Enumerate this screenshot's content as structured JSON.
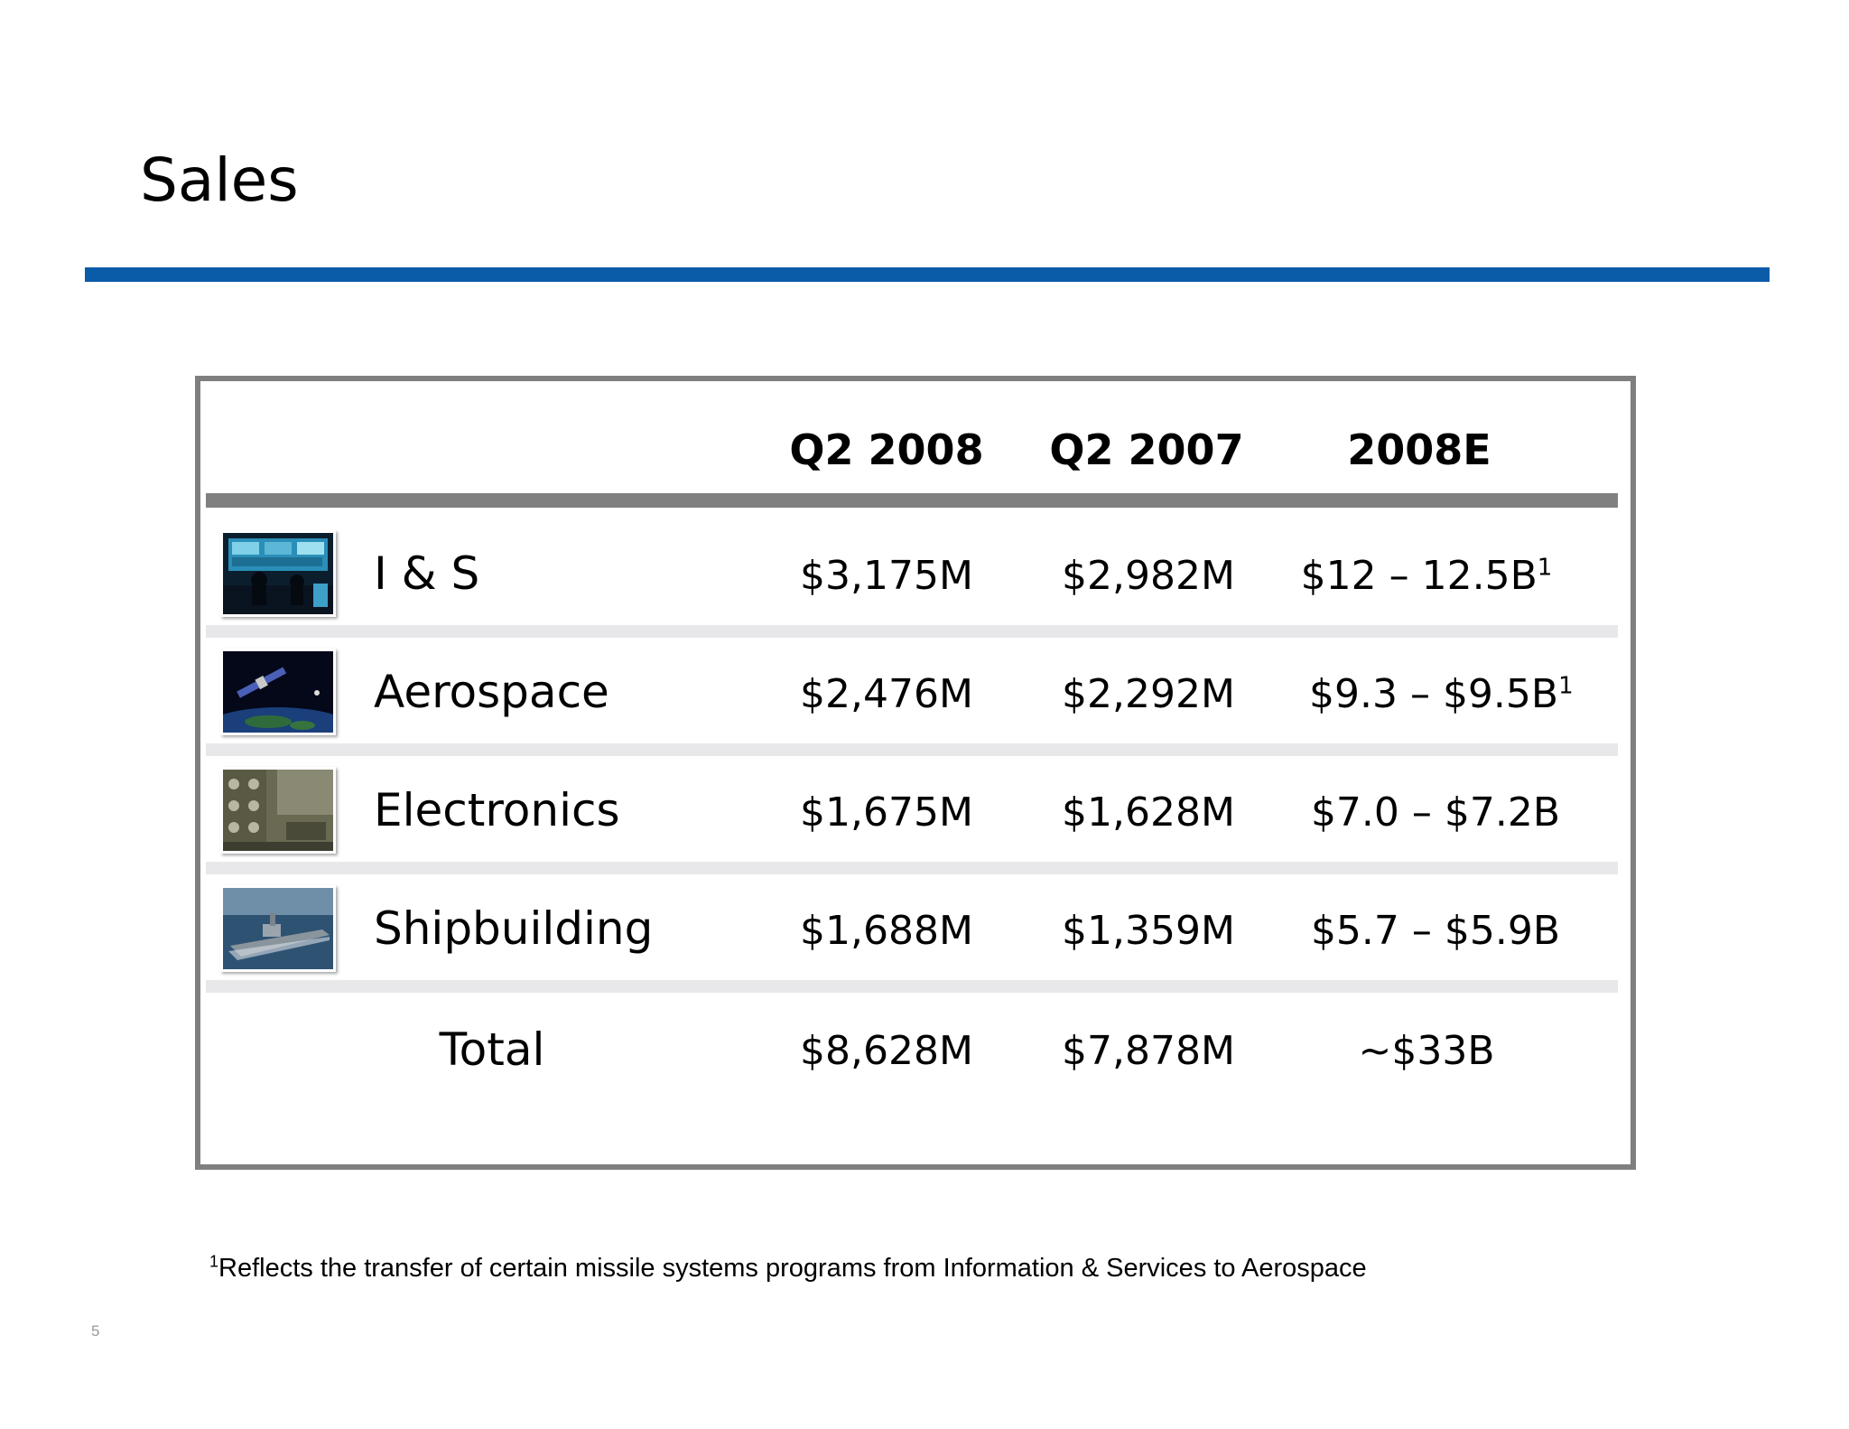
{
  "title": "Sales",
  "table": {
    "columns": [
      "Q2 2008",
      "Q2 2007",
      "2008E"
    ],
    "rows": [
      {
        "segment": "I & S",
        "image": "control-room-photo",
        "q2_2008": "$3,175M",
        "q2_2007": "$2,982M",
        "e2008": "$12 – 12.5B",
        "e2008_note": "1"
      },
      {
        "segment": "Aerospace",
        "image": "satellite-over-earth-photo",
        "q2_2008": "$2,476M",
        "q2_2007": "$2,292M",
        "e2008": "$9.3 – $9.5B",
        "e2008_note": "1"
      },
      {
        "segment": "Electronics",
        "image": "radar-equipment-photo",
        "q2_2008": "$1,675M",
        "q2_2007": "$1,628M",
        "e2008": "$7.0 – $7.2B",
        "e2008_note": ""
      },
      {
        "segment": "Shipbuilding",
        "image": "navy-ship-photo",
        "q2_2008": "$1,688M",
        "q2_2007": "$1,359M",
        "e2008": "$5.7 – $5.9B",
        "e2008_note": ""
      }
    ],
    "total": {
      "label": "Total",
      "q2_2008": "$8,628M",
      "q2_2007": "$7,878M",
      "e2008": "~$33B"
    }
  },
  "footnote": {
    "mark": "1",
    "text": "Reflects the transfer of certain missile systems programs from Information & Services to Aerospace"
  },
  "page_number": "5",
  "colors": {
    "accent_rule": "#0a5ba8",
    "header_rule": "#808080",
    "row_separator": "#e8e8ea",
    "frame": "#7f7f7f"
  }
}
